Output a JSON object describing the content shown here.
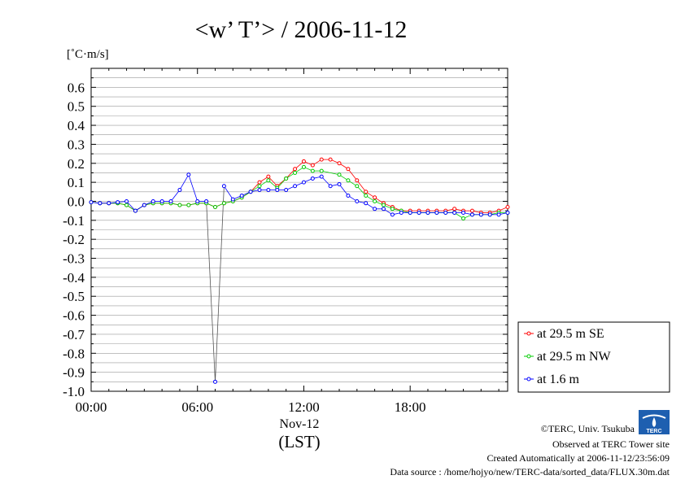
{
  "chart_data": {
    "type": "line",
    "title": "<w’ T’> / 2006-11-12",
    "ylabel": "[˚C·m/s]",
    "xlabel": "(LST)",
    "x_date_label": "Nov-12",
    "ylim": [
      -1.0,
      0.7
    ],
    "xlim_hours": [
      0,
      23.5
    ],
    "y_ticks": [
      "0.6",
      "0.5",
      "0.4",
      "0.3",
      "0.2",
      "0.1",
      "0.0",
      "-0.1",
      "-0.2",
      "-0.3",
      "-0.4",
      "-0.5",
      "-0.6",
      "-0.7",
      "-0.8",
      "-0.9",
      "-1.0"
    ],
    "x_ticks": [
      "00:00",
      "06:00",
      "12:00",
      "18:00"
    ],
    "grid": true,
    "legend_position": "bottom-right",
    "x": [
      0,
      0.5,
      1,
      1.5,
      2,
      2.5,
      3,
      3.5,
      4,
      4.5,
      5,
      5.5,
      6,
      6.5,
      7,
      7.5,
      8,
      8.5,
      9,
      9.5,
      10,
      10.5,
      11,
      11.5,
      12,
      12.5,
      13,
      13.5,
      14,
      14.5,
      15,
      15.5,
      16,
      16.5,
      17,
      17.5,
      18,
      18.5,
      19,
      19.5,
      20,
      20.5,
      21,
      21.5,
      22,
      22.5,
      23,
      23.5
    ],
    "series": [
      {
        "name": "at 29.5 m SE",
        "color": "#ff0000",
        "values": [
          -0.005,
          -0.01,
          -0.01,
          -0.01,
          -0.02,
          -0.05,
          -0.02,
          -0.01,
          -0.01,
          -0.01,
          -0.02,
          -0.02,
          -0.01,
          -0.01,
          -0.03,
          -0.01,
          0.0,
          0.02,
          0.05,
          0.1,
          0.13,
          0.08,
          0.12,
          0.17,
          0.21,
          0.19,
          0.22,
          0.22,
          0.2,
          0.17,
          0.11,
          0.05,
          0.02,
          -0.01,
          -0.03,
          -0.05,
          -0.05,
          -0.05,
          -0.05,
          -0.05,
          -0.05,
          -0.04,
          -0.05,
          -0.05,
          -0.06,
          -0.06,
          -0.05,
          -0.03
        ]
      },
      {
        "name": "at 29.5 m NW",
        "color": "#00cc00",
        "values": [
          -0.005,
          -0.01,
          -0.01,
          -0.01,
          -0.02,
          -0.05,
          -0.02,
          -0.01,
          -0.01,
          -0.01,
          -0.02,
          -0.02,
          -0.01,
          -0.01,
          -0.03,
          -0.01,
          0.0,
          0.02,
          0.05,
          0.08,
          0.11,
          0.07,
          0.12,
          0.15,
          0.18,
          0.16,
          0.16,
          null,
          0.14,
          0.11,
          0.08,
          0.03,
          0.0,
          -0.02,
          -0.04,
          -0.05,
          -0.06,
          -0.06,
          -0.06,
          -0.06,
          -0.06,
          -0.06,
          -0.09,
          -0.07,
          -0.07,
          -0.07,
          -0.06,
          -0.06
        ]
      },
      {
        "name": "at 1.6 m",
        "color": "#0000ff",
        "values": [
          -0.005,
          -0.01,
          -0.01,
          -0.005,
          0.0,
          -0.05,
          -0.02,
          0.0,
          0.0,
          0.0,
          0.06,
          0.14,
          0.0,
          0.0,
          -0.95,
          0.08,
          0.01,
          0.03,
          0.05,
          0.06,
          0.06,
          0.06,
          0.06,
          0.08,
          0.1,
          0.12,
          0.13,
          0.08,
          0.09,
          0.03,
          0.0,
          -0.01,
          -0.04,
          -0.04,
          -0.07,
          -0.06,
          -0.06,
          -0.06,
          -0.06,
          -0.06,
          -0.06,
          -0.06,
          -0.06,
          -0.07,
          -0.07,
          -0.07,
          -0.07,
          -0.06
        ]
      }
    ]
  },
  "credits": {
    "copyright": "©TERC, Univ. Tsukuba",
    "observed": "Observed at TERC Tower site",
    "created": "Created Automatically at 2006-11-12/23:56:09",
    "source": "Data source : /home/hojyo/new/TERC-data/sorted_data/FLUX.30m.dat",
    "logo_text": "TERC"
  }
}
